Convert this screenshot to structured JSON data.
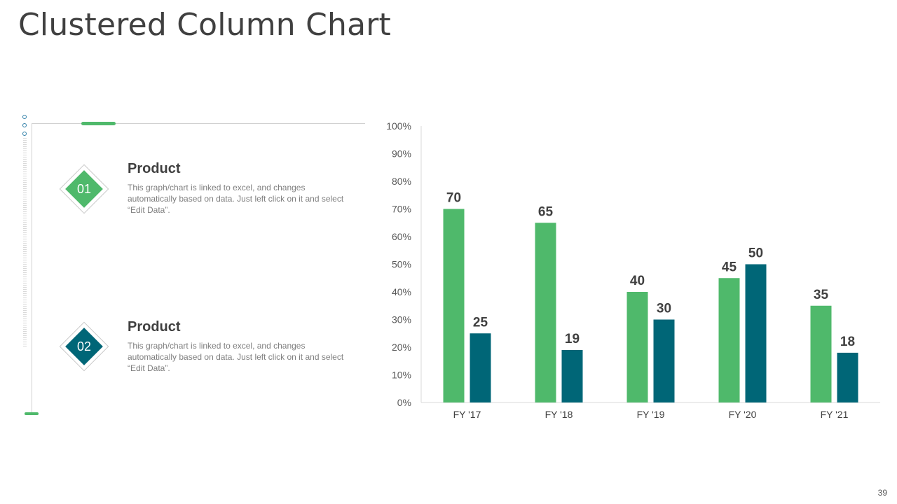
{
  "title": "Clustered Column Chart",
  "page_number": "39",
  "items": [
    {
      "number": "01",
      "title": "Product",
      "description": "This graph/chart is linked to excel, and changes automatically based on data. Just left click on it and select “Edit Data”.",
      "color": "#4fb96b"
    },
    {
      "number": "02",
      "title": "Product",
      "description": "This graph/chart is linked to excel, and changes automatically based on data. Just left click on it and select “Edit Data”.",
      "color": "#006677"
    }
  ],
  "chart_data": {
    "type": "bar",
    "title": "",
    "xlabel": "",
    "ylabel": "",
    "categories": [
      "FY '17",
      "FY '18",
      "FY '19",
      "FY '20",
      "FY '21"
    ],
    "series": [
      {
        "values": [
          70,
          65,
          40,
          45,
          35
        ],
        "color": "#4fb96b"
      },
      {
        "values": [
          25,
          19,
          30,
          50,
          18
        ],
        "color": "#006677"
      }
    ],
    "ylim": [
      0,
      100
    ],
    "yticks": [
      "0%",
      "10%",
      "20%",
      "30%",
      "40%",
      "50%",
      "60%",
      "70%",
      "80%",
      "90%",
      "100%"
    ],
    "grid": false,
    "data_labels": true
  }
}
